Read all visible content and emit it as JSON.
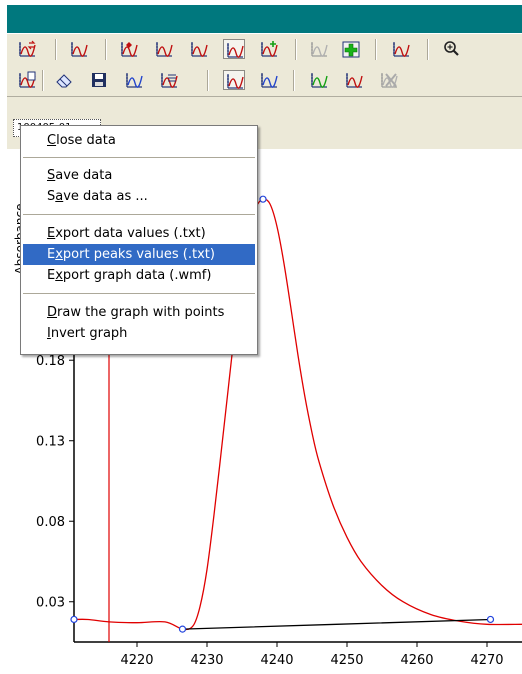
{
  "document_tab": {
    "label": "100405-01"
  },
  "context_menu": {
    "items": [
      {
        "label": "Close data",
        "mnemonic": "C"
      },
      {
        "label": "Save data",
        "mnemonic": "S"
      },
      {
        "label": "Save data as ...",
        "mnemonic": "a"
      },
      {
        "label": "Export data values (.txt)",
        "mnemonic": "E"
      },
      {
        "label": "Export peaks values (.txt)",
        "mnemonic": "x"
      },
      {
        "label": "Export graph data (.wmf)",
        "mnemonic": "x"
      },
      {
        "label": "Draw the graph with points",
        "mnemonic": "D"
      },
      {
        "label": "Invert graph",
        "mnemonic": "I"
      }
    ],
    "highlighted_index": 4
  },
  "toolbar_1": [
    {
      "icon": "exchange-graph-icon"
    },
    {
      "icon": "graph-area-icon"
    },
    {
      "icon": "graph-peak-marker-icon"
    },
    {
      "icon": "graph-h-marker-icon"
    },
    {
      "icon": "graph-c-marker-icon"
    },
    {
      "icon": "graph-pressed-icon",
      "pressed": true
    },
    {
      "icon": "graph-add-icon"
    },
    {
      "icon": "graph-disabled-icon",
      "disabled": true
    },
    {
      "icon": "green-plus-icon"
    },
    {
      "icon": "graph-red-icon"
    },
    {
      "icon": "zoom-icon"
    }
  ],
  "toolbar_2": [
    {
      "icon": "graph-doc-icon"
    },
    {
      "icon": "eraser-icon"
    },
    {
      "icon": "save-graph-icon"
    },
    {
      "icon": "graph-fit-icon"
    },
    {
      "icon": "graph-list-icon"
    },
    {
      "icon": "graph-points-pressed-icon",
      "pressed": true
    },
    {
      "icon": "graph-baseline-icon"
    },
    {
      "icon": "graph-green-icon"
    },
    {
      "icon": "graph-c2-icon"
    },
    {
      "icon": "graph-x-disabled-icon",
      "disabled": true
    }
  ],
  "chart_data": {
    "type": "line",
    "xlabel": "",
    "ylabel": "Absorbance",
    "x_ticks": [
      4220,
      4230,
      4240,
      4250,
      4260,
      4270
    ],
    "y_ticks": [
      0.03,
      0.08,
      0.13,
      0.18
    ],
    "xlim": [
      4211,
      4275
    ],
    "ylim": [
      0.005,
      0.3
    ],
    "grid": false,
    "series": [
      {
        "color": "#e00000",
        "x": [
          4211,
          4213,
          4216,
          4220,
          4224,
          4226.5,
          4228,
          4229,
          4230,
          4231,
          4232,
          4233,
          4234,
          4235,
          4236,
          4237,
          4238,
          4239,
          4240,
          4241,
          4242,
          4243,
          4244,
          4245,
          4246,
          4248,
          4250,
          4252,
          4255,
          4258,
          4262,
          4266,
          4270,
          4275
        ],
        "y": [
          0.019,
          0.019,
          0.0175,
          0.017,
          0.0175,
          0.013,
          0.015,
          0.027,
          0.05,
          0.084,
          0.122,
          0.161,
          0.2,
          0.235,
          0.26,
          0.275,
          0.28,
          0.277,
          0.263,
          0.24,
          0.212,
          0.183,
          0.157,
          0.135,
          0.117,
          0.09,
          0.07,
          0.055,
          0.04,
          0.03,
          0.022,
          0.018,
          0.016,
          0.016
        ]
      },
      {
        "color": "#000000",
        "x": [
          4226.5,
          4270.5
        ],
        "y": [
          0.013,
          0.019
        ]
      }
    ],
    "points": [
      {
        "x": 4211,
        "y": 0.019
      },
      {
        "x": 4226.5,
        "y": 0.013
      },
      {
        "x": 4238,
        "y": 0.28
      },
      {
        "x": 4270.5,
        "y": 0.019
      }
    ],
    "vertical_marker_x": 4216
  }
}
